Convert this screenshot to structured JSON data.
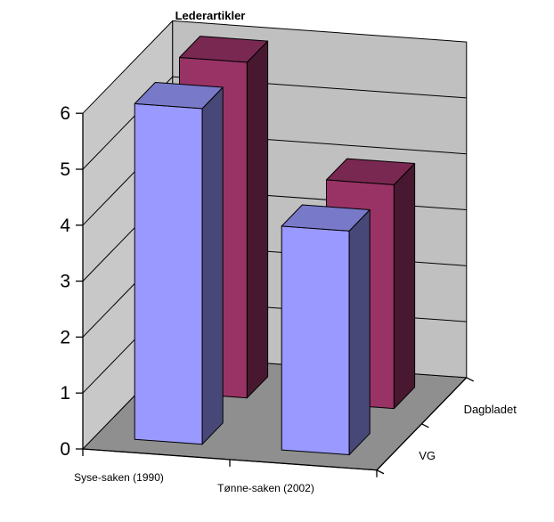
{
  "chart_data": {
    "type": "bar",
    "title": "Lederartikler",
    "categories": [
      "Syse-saken (1990)",
      "Tønne-saken (2002)"
    ],
    "series": [
      {
        "name": "VG",
        "values": [
          6,
          4
        ],
        "color": "#9999ff"
      },
      {
        "name": "Dagbladet",
        "values": [
          6,
          4
        ],
        "color": "#993366"
      }
    ],
    "yticks": [
      "0",
      "1",
      "2",
      "3",
      "4",
      "5",
      "6"
    ],
    "ylim": [
      0,
      6
    ],
    "grid": true,
    "projection": "3d"
  }
}
